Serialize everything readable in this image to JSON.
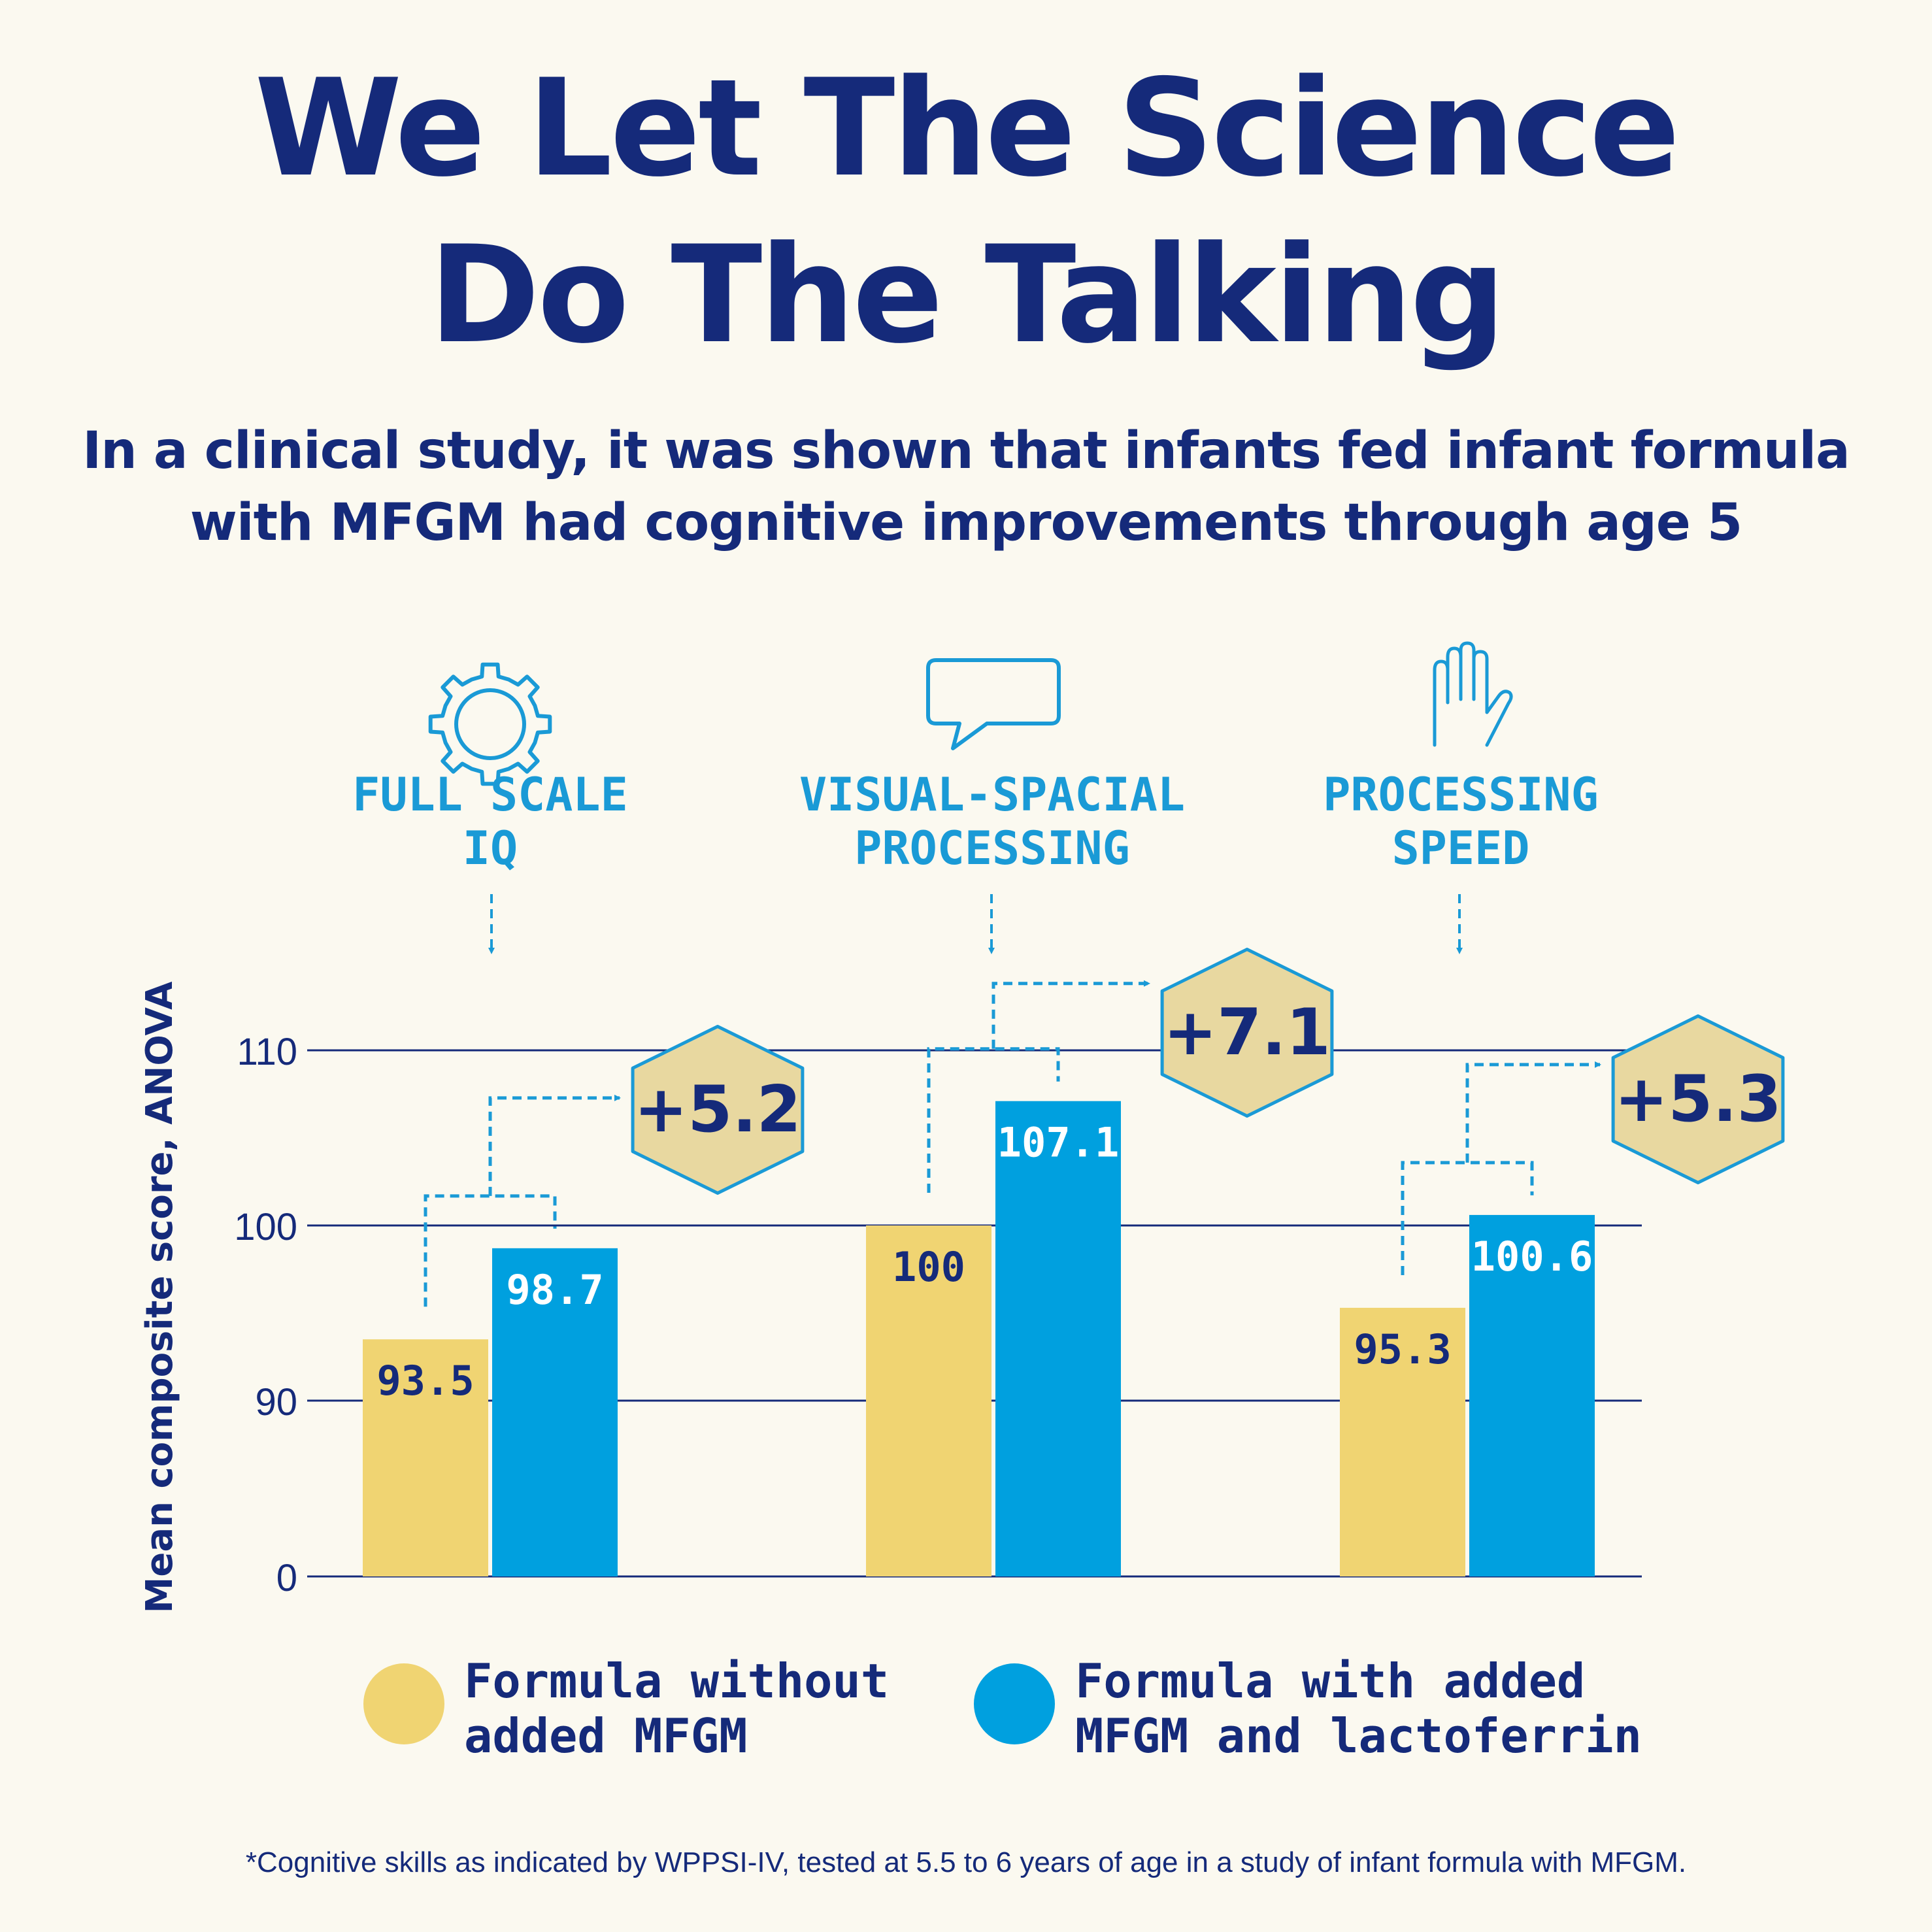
{
  "headline": {
    "line1": "We Let The Science",
    "line2": "Do The Talking"
  },
  "subhead": {
    "line1": "In a clinical study, it was shown that infants fed infant formula",
    "line2": "with MFGM had cognitive improvements through age 5"
  },
  "categories": [
    {
      "icon": "gear-icon",
      "line1": "FULL SCALE",
      "line2": "IQ"
    },
    {
      "icon": "speech-bubble-icon",
      "line1": "VISUAL-SPACIAL",
      "line2": "PROCESSING"
    },
    {
      "icon": "hand-icon",
      "line1": "PROCESSING",
      "line2": "SPEED"
    }
  ],
  "legend": {
    "without": {
      "line1": "Formula without",
      "line2": "added MFGM"
    },
    "with": {
      "line1": "Formula with added",
      "line2": "MFGM and lactoferrin"
    }
  },
  "footnote": "*Cognitive skills as indicated by WPPSI-IV, tested at 5.5 to 6 years of age in a study of infant formula with MFGM.",
  "colors": {
    "navy": "#152a7a",
    "accent_blue": "#1a9ad6",
    "bar_yellow": "#f0d472",
    "bar_blue": "#00a0df",
    "badge_fill": "#e8d8a0",
    "background": "#fbf9f0"
  },
  "chart_data": {
    "type": "bar",
    "ylabel": "Mean composite score, ANOVA",
    "y_ticks": [
      0,
      90,
      100,
      110
    ],
    "y_axis_note": "broken axis: 0 then 90-110",
    "categories": [
      "FULL SCALE IQ",
      "VISUAL-SPACIAL PROCESSING",
      "PROCESSING SPEED"
    ],
    "series": [
      {
        "name": "Formula without added MFGM",
        "values": [
          93.5,
          100,
          95.3
        ],
        "labels": [
          "93.5",
          "100",
          "95.3"
        ]
      },
      {
        "name": "Formula with added MFGM and lactoferrin",
        "values": [
          98.7,
          107.1,
          100.6
        ],
        "labels": [
          "98.7",
          "107.1",
          "100.6"
        ]
      }
    ],
    "differences": [
      "+5.2",
      "+7.1",
      "+5.3"
    ]
  }
}
